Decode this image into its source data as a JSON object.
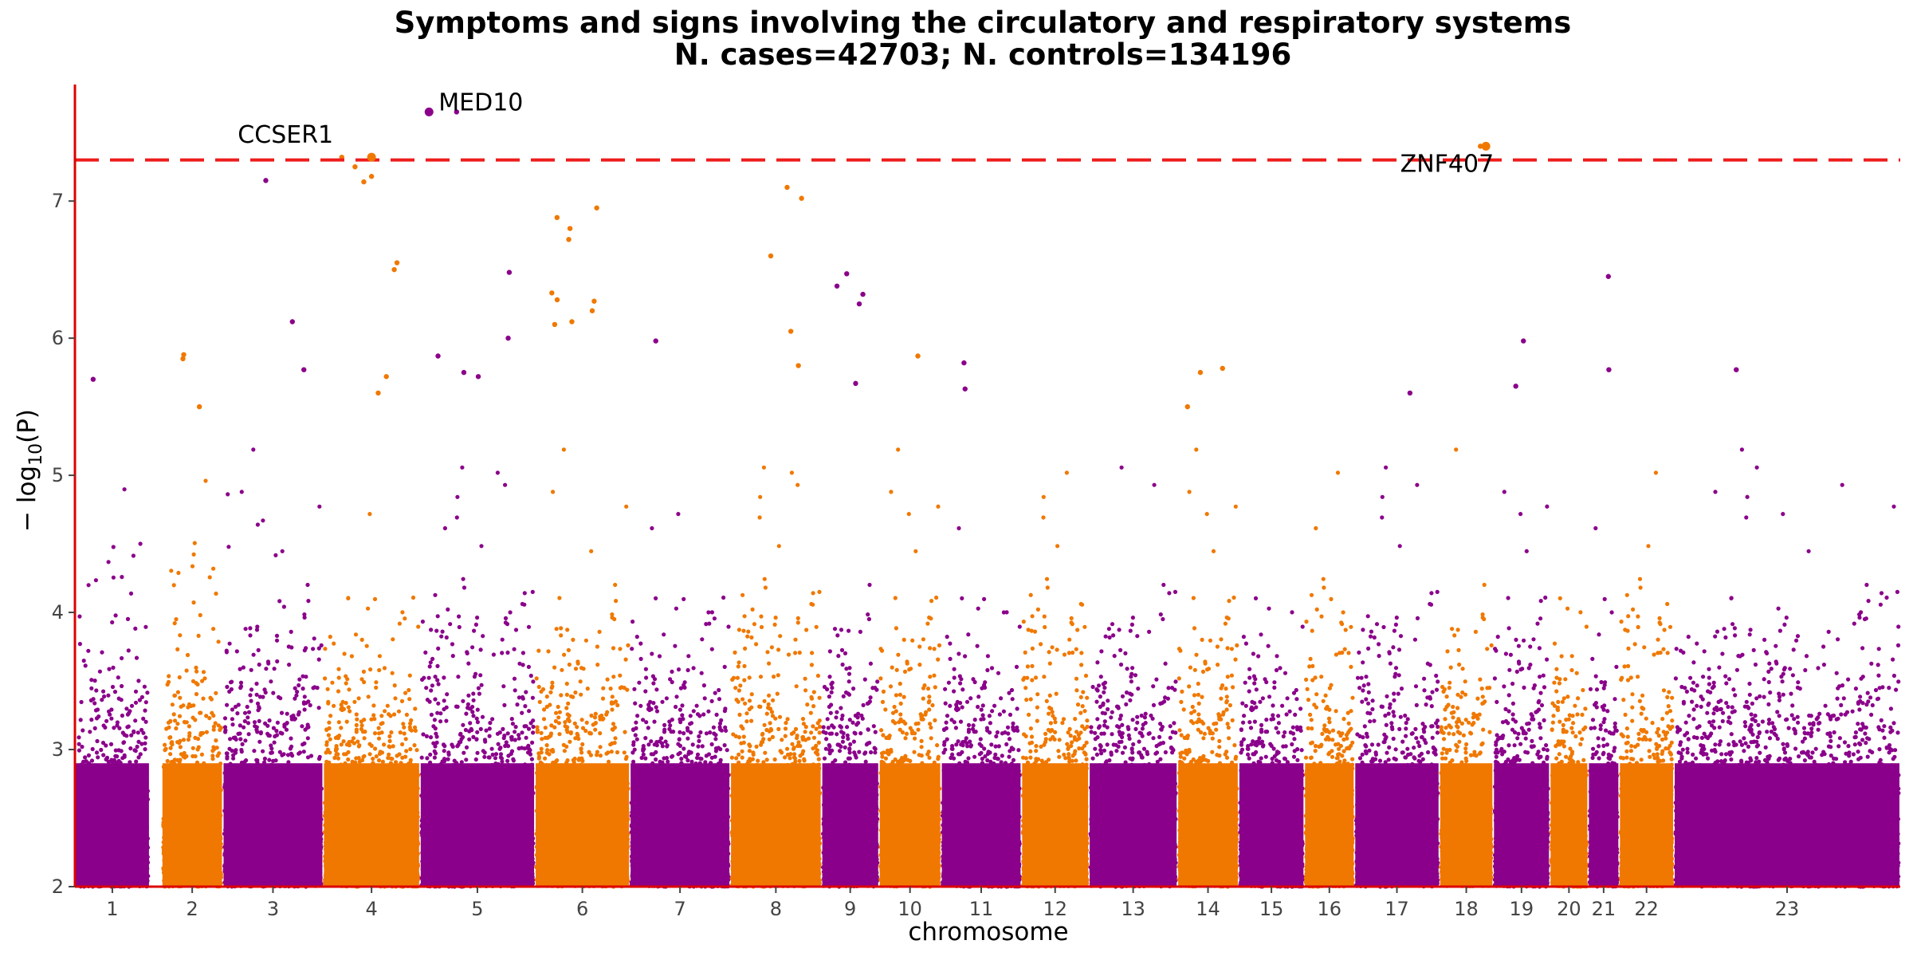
{
  "chart_data": {
    "type": "scatter",
    "subtype": "manhattan",
    "title_lines": [
      "Symptoms and signs involving the circulatory and respiratory systems",
      "N. cases=42703; N. controls=134196"
    ],
    "xlabel": "chromosome",
    "ylabel_base": "− log",
    "ylabel_sub": "10",
    "ylabel_tail": "(P)",
    "ylim": [
      2,
      7.85
    ],
    "yticks": [
      2,
      3,
      4,
      5,
      6,
      7
    ],
    "grid": false,
    "legend": "none",
    "significance_line": {
      "y": 7.3,
      "color": "#ee1c1c",
      "style": "dashed"
    },
    "colors": {
      "odd": "#8b008b",
      "even": "#f07800",
      "axis": "#dd0000"
    },
    "chromosomes": [
      {
        "label": "1",
        "range": [
          0.0,
          0.041
        ]
      },
      {
        "label": "2",
        "range": [
          0.0475,
          0.081
        ]
      },
      {
        "label": "3",
        "range": [
          0.081,
          0.136
        ]
      },
      {
        "label": "4",
        "range": [
          0.136,
          0.189
        ]
      },
      {
        "label": "5",
        "range": [
          0.189,
          0.252
        ]
      },
      {
        "label": "6",
        "range": [
          0.252,
          0.304
        ]
      },
      {
        "label": "7",
        "range": [
          0.304,
          0.359
        ]
      },
      {
        "label": "8",
        "range": [
          0.359,
          0.409
        ]
      },
      {
        "label": "9",
        "range": [
          0.409,
          0.4405
        ]
      },
      {
        "label": "10",
        "range": [
          0.4405,
          0.4745
        ]
      },
      {
        "label": "11",
        "range": [
          0.4745,
          0.5185
        ]
      },
      {
        "label": "12",
        "range": [
          0.5185,
          0.5555
        ]
      },
      {
        "label": "13",
        "range": [
          0.5555,
          0.604
        ]
      },
      {
        "label": "14",
        "range": [
          0.604,
          0.6375
        ]
      },
      {
        "label": "15",
        "range": [
          0.6375,
          0.6735
        ]
      },
      {
        "label": "16",
        "range": [
          0.6735,
          0.701
        ]
      },
      {
        "label": "17",
        "range": [
          0.701,
          0.7475
        ]
      },
      {
        "label": "18",
        "range": [
          0.7475,
          0.777
        ]
      },
      {
        "label": "19",
        "range": [
          0.777,
          0.808
        ]
      },
      {
        "label": "20",
        "range": [
          0.808,
          0.829
        ]
      },
      {
        "label": "21",
        "range": [
          0.829,
          0.846
        ]
      },
      {
        "label": "22",
        "range": [
          0.846,
          0.876
        ]
      },
      {
        "label": "23",
        "range": [
          0.876,
          1.0
        ]
      }
    ],
    "annotations": [
      {
        "gene": "MED10",
        "chrom": "5",
        "y": 7.65
      },
      {
        "gene": "CCSER1",
        "chrom": "4",
        "y": 7.32
      },
      {
        "gene": "ZNF407",
        "chrom": "18",
        "y": 7.4
      }
    ],
    "top_hits": [
      {
        "chrom": "1",
        "y": 5.7
      },
      {
        "chrom": "2",
        "y": 5.85
      },
      {
        "chrom": "2",
        "y": 5.88
      },
      {
        "chrom": "2",
        "y": 5.5
      },
      {
        "chrom": "3",
        "y": 7.15
      },
      {
        "chrom": "3",
        "y": 5.77
      },
      {
        "chrom": "3",
        "y": 6.12
      },
      {
        "chrom": "4",
        "y": 7.32
      },
      {
        "chrom": "4",
        "y": 7.25
      },
      {
        "chrom": "4",
        "y": 7.18
      },
      {
        "chrom": "4",
        "y": 7.14
      },
      {
        "chrom": "4",
        "y": 6.55
      },
      {
        "chrom": "4",
        "y": 6.5
      },
      {
        "chrom": "4",
        "y": 5.72
      },
      {
        "chrom": "4",
        "y": 5.6
      },
      {
        "chrom": "5",
        "y": 7.65
      },
      {
        "chrom": "5",
        "y": 5.75
      },
      {
        "chrom": "5",
        "y": 5.72
      },
      {
        "chrom": "5",
        "y": 6.48
      },
      {
        "chrom": "5",
        "y": 6.0
      },
      {
        "chrom": "5",
        "y": 5.87
      },
      {
        "chrom": "6",
        "y": 6.72
      },
      {
        "chrom": "6",
        "y": 6.95
      },
      {
        "chrom": "6",
        "y": 6.88
      },
      {
        "chrom": "6",
        "y": 6.8
      },
      {
        "chrom": "6",
        "y": 6.33
      },
      {
        "chrom": "6",
        "y": 6.28
      },
      {
        "chrom": "6",
        "y": 6.2
      },
      {
        "chrom": "6",
        "y": 6.12
      },
      {
        "chrom": "6",
        "y": 6.27
      },
      {
        "chrom": "6",
        "y": 6.1
      },
      {
        "chrom": "7",
        "y": 5.98
      },
      {
        "chrom": "8",
        "y": 6.05
      },
      {
        "chrom": "8",
        "y": 7.1
      },
      {
        "chrom": "8",
        "y": 7.02
      },
      {
        "chrom": "8",
        "y": 6.6
      },
      {
        "chrom": "8",
        "y": 5.8
      },
      {
        "chrom": "9",
        "y": 6.47
      },
      {
        "chrom": "9",
        "y": 6.38
      },
      {
        "chrom": "9",
        "y": 6.32
      },
      {
        "chrom": "9",
        "y": 6.25
      },
      {
        "chrom": "9",
        "y": 5.67
      },
      {
        "chrom": "10",
        "y": 5.87
      },
      {
        "chrom": "11",
        "y": 5.82
      },
      {
        "chrom": "11",
        "y": 5.63
      },
      {
        "chrom": "14",
        "y": 5.78
      },
      {
        "chrom": "14",
        "y": 5.75
      },
      {
        "chrom": "14",
        "y": 5.5
      },
      {
        "chrom": "17",
        "y": 5.6
      },
      {
        "chrom": "18",
        "y": 7.4
      },
      {
        "chrom": "19",
        "y": 5.98
      },
      {
        "chrom": "19",
        "y": 5.65
      },
      {
        "chrom": "21",
        "y": 6.45
      },
      {
        "chrom": "21",
        "y": 5.77
      },
      {
        "chrom": "23",
        "y": 5.77
      }
    ]
  }
}
